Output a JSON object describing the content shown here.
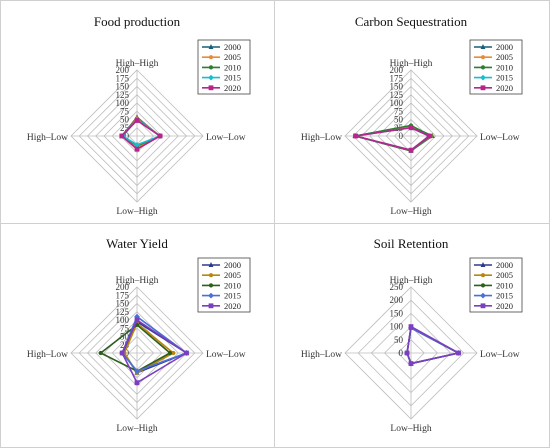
{
  "chart_data": [
    {
      "type": "radar",
      "title": "Food production",
      "axes": [
        "High–High",
        "Low–Low",
        "Low–High",
        "High–Low"
      ],
      "ticks": [
        0,
        25,
        50,
        75,
        100,
        125,
        150,
        175,
        200
      ],
      "rmax": 200,
      "series": [
        {
          "name": "2000",
          "color": "#1b5e7a",
          "marker": "triangle",
          "values": [
            57,
            68,
            38,
            46
          ]
        },
        {
          "name": "2005",
          "color": "#e88a3a",
          "marker": "circle",
          "values": [
            54,
            70,
            35,
            45
          ]
        },
        {
          "name": "2010",
          "color": "#2e7d32",
          "marker": "circle",
          "values": [
            52,
            69,
            30,
            44
          ]
        },
        {
          "name": "2015",
          "color": "#17becf",
          "marker": "diamond",
          "values": [
            50,
            70,
            27,
            43
          ]
        },
        {
          "name": "2020",
          "color": "#b8238c",
          "marker": "square",
          "values": [
            47,
            70,
            40,
            46
          ]
        }
      ]
    },
    {
      "type": "radar",
      "title": "Carbon Sequestration",
      "axes": [
        "High–High",
        "Low–Low",
        "Low–High",
        "High–Low"
      ],
      "ticks": [
        0,
        25,
        50,
        75,
        100,
        125,
        150,
        175,
        200
      ],
      "rmax": 200,
      "series": [
        {
          "name": "2000",
          "color": "#1b5e7a",
          "marker": "triangle",
          "values": [
            30,
            65,
            45,
            170
          ]
        },
        {
          "name": "2005",
          "color": "#e88a3a",
          "marker": "circle",
          "values": [
            28,
            62,
            45,
            168
          ]
        },
        {
          "name": "2010",
          "color": "#2e7d32",
          "marker": "circle",
          "values": [
            32,
            60,
            45,
            169
          ]
        },
        {
          "name": "2015",
          "color": "#17becf",
          "marker": "diamond",
          "values": [
            25,
            55,
            43,
            168
          ]
        },
        {
          "name": "2020",
          "color": "#b8238c",
          "marker": "square",
          "values": [
            25,
            55,
            43,
            168
          ]
        }
      ]
    },
    {
      "type": "radar",
      "title": "Water Yield",
      "axes": [
        "High–High",
        "Low–Low",
        "Low–High",
        "High–Low"
      ],
      "ticks": [
        0,
        25,
        50,
        75,
        100,
        125,
        150,
        175,
        200
      ],
      "rmax": 200,
      "series": [
        {
          "name": "2000",
          "color": "#2b3a8c",
          "marker": "triangle",
          "values": [
            95,
            150,
            60,
            40
          ]
        },
        {
          "name": "2005",
          "color": "#b8860b",
          "marker": "circle",
          "values": [
            90,
            110,
            60,
            38
          ]
        },
        {
          "name": "2010",
          "color": "#2e5e1e",
          "marker": "circle",
          "values": [
            85,
            100,
            55,
            110
          ]
        },
        {
          "name": "2015",
          "color": "#4a6fd6",
          "marker": "diamond",
          "values": [
            110,
            150,
            55,
            45
          ]
        },
        {
          "name": "2020",
          "color": "#7b3fbf",
          "marker": "square",
          "values": [
            100,
            150,
            90,
            45
          ]
        }
      ]
    },
    {
      "type": "radar",
      "title": "Soil Retention",
      "axes": [
        "High–High",
        "Low–Low",
        "Low–High",
        "High–Low"
      ],
      "ticks": [
        0,
        50,
        100,
        150,
        200,
        250
      ],
      "rmax": 250,
      "series": [
        {
          "name": "2000",
          "color": "#2b3a8c",
          "marker": "triangle",
          "values": [
            95,
            180,
            40,
            15
          ]
        },
        {
          "name": "2005",
          "color": "#b8860b",
          "marker": "circle",
          "values": [
            95,
            180,
            40,
            15
          ]
        },
        {
          "name": "2010",
          "color": "#2e5e1e",
          "marker": "circle",
          "values": [
            95,
            180,
            40,
            15
          ]
        },
        {
          "name": "2015",
          "color": "#4a6fd6",
          "marker": "diamond",
          "values": [
            95,
            180,
            40,
            15
          ]
        },
        {
          "name": "2020",
          "color": "#7b3fbf",
          "marker": "square",
          "values": [
            100,
            180,
            40,
            15
          ]
        }
      ]
    }
  ]
}
